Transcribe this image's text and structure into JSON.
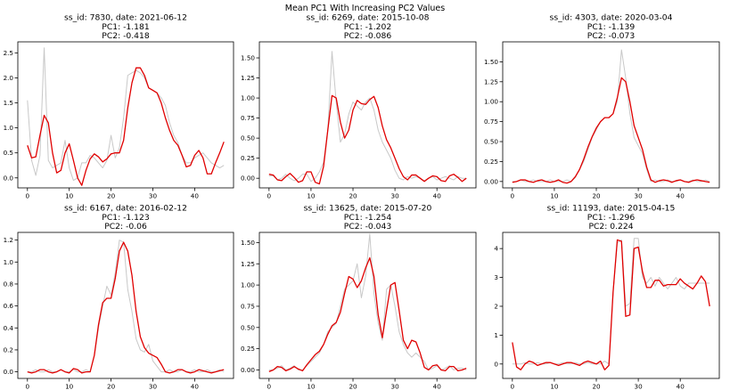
{
  "figure": {
    "suptitle": "Mean PC1 With Increasing PC2 Values",
    "colors": {
      "observed": "#c8c8c8",
      "smoothed": "#e00000",
      "axes": "#000000"
    }
  },
  "chart_data": [
    {
      "type": "line",
      "title_lines": [
        "ss_id: 7830, date: 2021-06-12",
        "PC1: -1.181",
        "PC2: -0.418"
      ],
      "xlim": [
        -2.3,
        49.3
      ],
      "ylim": [
        -0.2,
        2.72
      ],
      "xticks": [
        0,
        10,
        20,
        30,
        40
      ],
      "yticks": [
        0.0,
        0.5,
        1.0,
        1.5,
        2.0,
        2.5
      ],
      "series": [
        {
          "values": [
            1.55,
            0.35,
            0.05,
            0.45,
            2.6,
            0.35,
            0.2,
            0.25,
            0.3,
            0.75,
            0.2,
            -0.05,
            0.0,
            0.3,
            0.3,
            0.45,
            0.4,
            0.3,
            0.2,
            0.35,
            0.85,
            0.4,
            0.6,
            1.2,
            2.05,
            2.1,
            2.15,
            2.1,
            2.0,
            1.8,
            1.75,
            1.7,
            1.6,
            1.45,
            1.1,
            0.85,
            0.7,
            0.45,
            0.3,
            0.3,
            0.4,
            0.45,
            0.5,
            0.4,
            0.3,
            0.25,
            0.2,
            0.25
          ]
        },
        {
          "values": [
            0.65,
            0.4,
            0.42,
            0.85,
            1.25,
            1.1,
            0.5,
            0.1,
            0.15,
            0.5,
            0.68,
            0.35,
            0.0,
            -0.15,
            0.15,
            0.38,
            0.48,
            0.42,
            0.32,
            0.38,
            0.48,
            0.5,
            0.5,
            0.75,
            1.4,
            1.9,
            2.2,
            2.2,
            2.05,
            1.8,
            1.75,
            1.7,
            1.5,
            1.2,
            0.95,
            0.75,
            0.65,
            0.45,
            0.22,
            0.25,
            0.45,
            0.55,
            0.4,
            0.08,
            0.08,
            0.3,
            0.5,
            0.72
          ]
        }
      ]
    },
    {
      "type": "line",
      "title_lines": [
        "ss_id: 6269, date: 2015-10-08",
        "PC1: -1.202",
        "PC2: -0.086"
      ],
      "xlim": [
        -2.3,
        49.3
      ],
      "ylim": [
        -0.12,
        1.7
      ],
      "xticks": [
        0,
        10,
        20,
        30,
        40
      ],
      "yticks": [
        0.0,
        0.25,
        0.5,
        0.75,
        1.0,
        1.25,
        1.5
      ],
      "series": [
        {
          "values": [
            0.03,
            0.03,
            -0.02,
            0.0,
            0.05,
            0.0,
            -0.03,
            0.0,
            0.05,
            0.05,
            -0.04,
            0.0,
            0.08,
            0.2,
            0.6,
            1.58,
            0.95,
            0.45,
            0.55,
            0.8,
            0.95,
            0.9,
            0.85,
            0.95,
            1.0,
            0.85,
            0.6,
            0.45,
            0.35,
            0.25,
            0.1,
            0.0,
            -0.02,
            0.02,
            0.0,
            0.02,
            0.0,
            -0.03,
            0.0,
            0.02,
            -0.02,
            0.0,
            0.02,
            0.0,
            -0.02,
            0.02,
            0.0,
            0.0
          ]
        },
        {
          "values": [
            0.05,
            0.04,
            -0.02,
            -0.03,
            0.02,
            0.06,
            0.01,
            -0.05,
            -0.03,
            0.08,
            0.08,
            -0.05,
            -0.07,
            0.15,
            0.6,
            1.03,
            1.0,
            0.7,
            0.5,
            0.6,
            0.85,
            0.97,
            0.93,
            0.92,
            0.98,
            1.02,
            0.88,
            0.65,
            0.48,
            0.38,
            0.25,
            0.12,
            0.02,
            -0.02,
            0.04,
            0.04,
            0.0,
            -0.04,
            0.0,
            0.03,
            0.02,
            -0.03,
            -0.04,
            0.03,
            0.05,
            0.01,
            -0.04,
            0.0
          ]
        }
      ]
    },
    {
      "type": "line",
      "title_lines": [
        "ss_id: 4303, date: 2020-03-04",
        "PC1: -1.139",
        "PC2: -0.073"
      ],
      "xlim": [
        -2.3,
        49.3
      ],
      "ylim": [
        -0.08,
        1.75
      ],
      "xticks": [
        0,
        10,
        20,
        30,
        40
      ],
      "yticks": [
        0.0,
        0.25,
        0.5,
        0.75,
        1.0,
        1.25,
        1.5
      ],
      "series": [
        {
          "values": [
            0.0,
            0.0,
            0.02,
            0.0,
            0.0,
            0.02,
            0.0,
            0.0,
            0.0,
            0.02,
            0.0,
            0.0,
            0.0,
            0.02,
            0.0,
            0.05,
            0.15,
            0.25,
            0.4,
            0.55,
            0.65,
            0.75,
            0.8,
            0.8,
            0.85,
            1.0,
            1.65,
            1.3,
            0.85,
            0.55,
            0.45,
            0.35,
            0.15,
            0.0,
            0.02,
            0.0,
            0.0,
            0.02,
            0.0,
            0.0,
            0.02,
            0.0,
            0.0,
            0.02,
            0.0,
            0.0,
            0.02,
            0.0
          ]
        },
        {
          "values": [
            -0.01,
            0.0,
            0.02,
            0.02,
            0.0,
            -0.01,
            0.01,
            0.02,
            0.0,
            -0.01,
            0.0,
            0.02,
            -0.01,
            -0.02,
            0.0,
            0.06,
            0.15,
            0.28,
            0.43,
            0.56,
            0.67,
            0.75,
            0.8,
            0.8,
            0.85,
            1.05,
            1.3,
            1.25,
            1.0,
            0.7,
            0.55,
            0.4,
            0.18,
            0.02,
            -0.01,
            0.01,
            0.02,
            0.01,
            -0.01,
            0.01,
            0.02,
            0.0,
            -0.01,
            0.01,
            0.02,
            0.01,
            0.0,
            -0.01
          ]
        }
      ]
    },
    {
      "type": "line",
      "title_lines": [
        "ss_id: 6167, date: 2016-02-12",
        "PC1: -1.123",
        "PC2: -0.06"
      ],
      "xlim": [
        -2.3,
        49.3
      ],
      "ylim": [
        -0.06,
        1.27
      ],
      "xticks": [
        0,
        10,
        20,
        30,
        40
      ],
      "yticks": [
        0.0,
        0.2,
        0.4,
        0.6,
        0.8,
        1.0,
        1.2
      ],
      "series": [
        {
          "values": [
            0.0,
            0.0,
            0.02,
            0.0,
            0.0,
            0.02,
            0.0,
            0.0,
            0.02,
            0.0,
            0.0,
            0.02,
            0.0,
            0.0,
            0.02,
            0.0,
            0.15,
            0.4,
            0.6,
            0.78,
            0.7,
            0.9,
            1.2,
            1.18,
            0.75,
            0.55,
            0.3,
            0.2,
            0.18,
            0.25,
            0.1,
            0.05,
            0.0,
            0.0,
            0.02,
            0.0,
            0.0,
            0.02,
            0.0,
            0.0,
            0.02,
            0.0,
            0.0,
            0.02,
            0.0,
            0.0,
            0.02,
            0.0
          ]
        },
        {
          "values": [
            0.0,
            -0.01,
            0.0,
            0.02,
            0.02,
            0.0,
            -0.01,
            0.0,
            0.02,
            0.0,
            -0.01,
            0.03,
            0.02,
            -0.01,
            0.0,
            0.0,
            0.15,
            0.43,
            0.63,
            0.67,
            0.67,
            0.85,
            1.1,
            1.18,
            1.1,
            0.88,
            0.55,
            0.32,
            0.22,
            0.17,
            0.15,
            0.13,
            0.07,
            0.0,
            -0.01,
            0.0,
            0.02,
            0.02,
            0.0,
            -0.01,
            0.0,
            0.02,
            0.01,
            0.0,
            -0.01,
            0.0,
            0.01,
            0.02
          ]
        }
      ]
    },
    {
      "type": "line",
      "title_lines": [
        "ss_id: 13625, date: 2015-07-20",
        "PC1: -1.254",
        "PC2: -0.043"
      ],
      "xlim": [
        -2.3,
        49.3
      ],
      "ylim": [
        -0.1,
        1.62
      ],
      "xticks": [
        0,
        10,
        20,
        30,
        40
      ],
      "yticks": [
        0.0,
        0.25,
        0.5,
        0.75,
        1.0,
        1.25,
        1.5
      ],
      "series": [
        {
          "values": [
            0.0,
            0.0,
            0.02,
            0.05,
            0.0,
            0.02,
            0.05,
            0.0,
            0.0,
            0.05,
            0.1,
            0.15,
            0.2,
            0.3,
            0.45,
            0.5,
            0.55,
            0.75,
            0.95,
            1.0,
            1.05,
            1.25,
            0.85,
            1.1,
            1.6,
            0.9,
            0.55,
            0.35,
            0.95,
            1.0,
            0.75,
            0.45,
            0.3,
            0.2,
            0.15,
            0.2,
            0.15,
            0.1,
            0.0,
            0.02,
            0.05,
            0.0,
            0.02,
            0.05,
            0.0,
            0.02,
            0.02,
            0.0
          ]
        },
        {
          "values": [
            -0.02,
            0.0,
            0.04,
            0.03,
            -0.01,
            0.01,
            0.04,
            0.01,
            -0.01,
            0.06,
            0.12,
            0.18,
            0.22,
            0.3,
            0.42,
            0.52,
            0.56,
            0.68,
            0.9,
            1.1,
            1.07,
            0.97,
            1.05,
            1.2,
            1.32,
            1.1,
            0.65,
            0.38,
            0.7,
            1.0,
            1.03,
            0.7,
            0.35,
            0.25,
            0.35,
            0.33,
            0.2,
            0.03,
            0.0,
            0.05,
            0.06,
            0.0,
            -0.01,
            0.04,
            0.04,
            -0.01,
            0.0,
            0.02
          ]
        }
      ]
    },
    {
      "type": "line",
      "title_lines": [
        "ss_id: 11193, date: 2015-04-15",
        "PC1: -1.296",
        "PC2: 0.224"
      ],
      "xlim": [
        -2.3,
        49.3
      ],
      "ylim": [
        -0.5,
        4.56
      ],
      "xticks": [
        0,
        10,
        20,
        30,
        40
      ],
      "yticks": [
        0,
        1,
        2,
        3,
        4
      ],
      "series": [
        {
          "values": [
            0.0,
            0.0,
            0.0,
            0.05,
            0.0,
            0.0,
            0.05,
            0.0,
            0.0,
            0.05,
            0.0,
            0.0,
            0.05,
            0.0,
            0.0,
            0.05,
            0.0,
            0.0,
            0.05,
            0.0,
            0.0,
            0.0,
            0.1,
            0.0,
            2.5,
            4.2,
            4.3,
            2.0,
            2.1,
            4.35,
            4.35,
            3.0,
            2.8,
            3.0,
            2.7,
            3.0,
            2.8,
            2.6,
            2.8,
            3.0,
            2.7,
            2.6,
            2.8,
            2.8,
            2.8,
            2.8,
            2.8,
            2.8
          ]
        },
        {
          "values": [
            0.75,
            -0.1,
            -0.2,
            0.0,
            0.1,
            0.05,
            -0.05,
            0.0,
            0.05,
            0.05,
            0.0,
            -0.05,
            0.0,
            0.05,
            0.05,
            0.0,
            -0.05,
            0.05,
            0.1,
            0.05,
            0.0,
            0.1,
            -0.2,
            -0.05,
            2.5,
            4.3,
            4.25,
            1.65,
            1.7,
            4.0,
            4.05,
            3.2,
            2.65,
            2.65,
            2.9,
            2.9,
            2.7,
            2.75,
            2.75,
            2.75,
            2.95,
            2.8,
            2.7,
            2.6,
            2.8,
            3.05,
            2.85,
            2.0
          ]
        }
      ]
    }
  ]
}
